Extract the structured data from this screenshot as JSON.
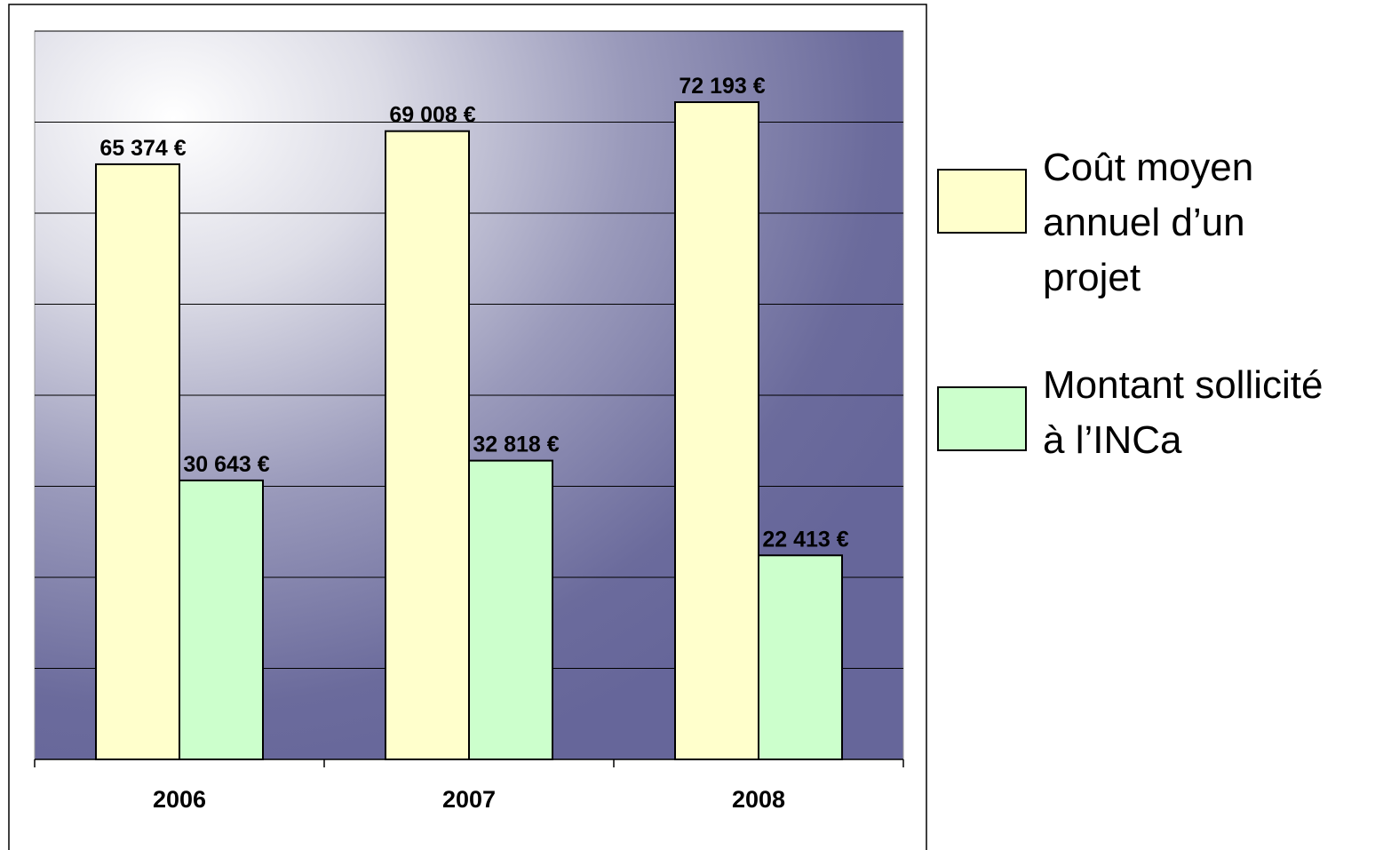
{
  "chart_data": {
    "type": "bar",
    "categories": [
      "2006",
      "2007",
      "2008"
    ],
    "series": [
      {
        "name": "Coût moyen annuel d’un projet",
        "color": "#ffffcc",
        "values": [
          65374,
          69008,
          72193
        ],
        "value_labels": [
          "65 374 €",
          "69 008 €",
          "72 193 €"
        ]
      },
      {
        "name": "Montant sollicité à l’INCa",
        "color": "#ccffcc",
        "values": [
          30643,
          32818,
          22413
        ],
        "value_labels": [
          "30 643 €",
          "32 818 €",
          "22 413 €"
        ]
      }
    ],
    "ylim": [
      0,
      80000
    ],
    "yticks": [
      0,
      10000,
      20000,
      30000,
      40000,
      50000,
      60000,
      70000,
      80000
    ],
    "grid": true,
    "legend": "right"
  }
}
